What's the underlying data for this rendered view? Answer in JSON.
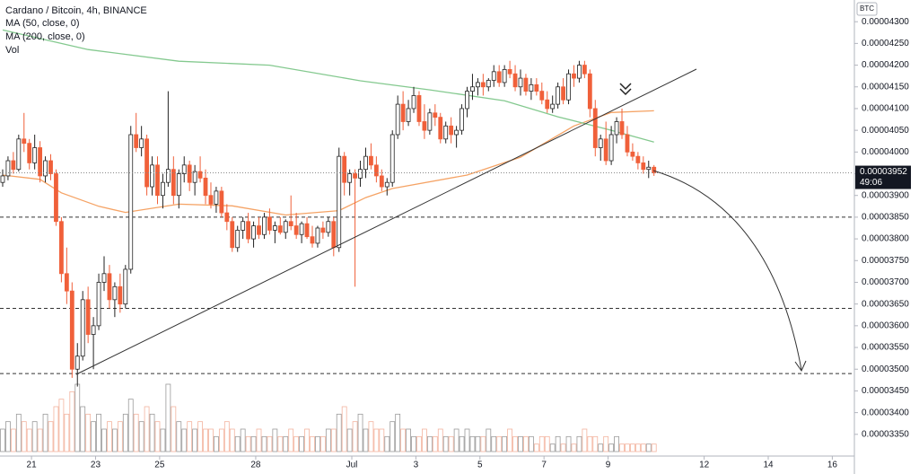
{
  "chart_data": {
    "type": "candlestick",
    "title": "Cardano / Bitcoin, 4h, BINANCE",
    "currency": "BTC",
    "volume_label": "Vol",
    "countdown": "49:06",
    "last_price": 3.952e-05,
    "up_color": "#ffffff",
    "down_color": "#f0603a",
    "grid": false,
    "ylim": [
      3.3e-05,
      4.35e-05
    ],
    "xlim": [
      -0.5,
      159.2
    ],
    "yticks": [
      {
        "value": 3.35e-05,
        "label": "0.00003350"
      },
      {
        "value": 3.4e-05,
        "label": "0.00003400"
      },
      {
        "value": 3.45e-05,
        "label": "0.00003450"
      },
      {
        "value": 3.5e-05,
        "label": "0.00003500"
      },
      {
        "value": 3.55e-05,
        "label": "0.00003550"
      },
      {
        "value": 3.6e-05,
        "label": "0.00003600"
      },
      {
        "value": 3.65e-05,
        "label": "0.00003650"
      },
      {
        "value": 3.7e-05,
        "label": "0.00003700"
      },
      {
        "value": 3.75e-05,
        "label": "0.00003750"
      },
      {
        "value": 3.8e-05,
        "label": "0.00003800"
      },
      {
        "value": 3.85e-05,
        "label": "0.00003850"
      },
      {
        "value": 3.9e-05,
        "label": "0.00003900"
      },
      {
        "value": 3.95e-05,
        "label": "0.00003950"
      },
      {
        "value": 4e-05,
        "label": "0.00004000"
      },
      {
        "value": 4.05e-05,
        "label": "0.00004050"
      },
      {
        "value": 4.1e-05,
        "label": "0.00004100"
      },
      {
        "value": 4.15e-05,
        "label": "0.00004150"
      },
      {
        "value": 4.2e-05,
        "label": "0.00004200"
      },
      {
        "value": 4.25e-05,
        "label": "0.00004250"
      },
      {
        "value": 4.3e-05,
        "label": "0.00004300"
      }
    ],
    "xticks": [
      {
        "value": 5.4,
        "label": "21"
      },
      {
        "value": 17.4,
        "label": "23"
      },
      {
        "value": 29.4,
        "label": "25"
      },
      {
        "value": 47.4,
        "label": "28"
      },
      {
        "value": 65.4,
        "label": "Jul"
      },
      {
        "value": 77.4,
        "label": "3"
      },
      {
        "value": 89.4,
        "label": "5"
      },
      {
        "value": 101.4,
        "label": "7"
      },
      {
        "value": 113.4,
        "label": "9"
      },
      {
        "value": 131.4,
        "label": "12"
      },
      {
        "value": 143.4,
        "label": "14"
      },
      {
        "value": 155.4,
        "label": "16"
      }
    ],
    "levels": [
      3.85e-05,
      3.64e-05,
      3.49e-05
    ],
    "indicators": [
      {
        "name": "MA (50, close, 0)",
        "color": "#f5a365",
        "x": [
          0,
          7,
          11,
          18,
          23,
          33,
          43,
          53,
          63,
          68,
          73,
          87,
          97,
          107,
          114,
          122
        ],
        "values": [
          3.947e-05,
          3.937e-05,
          3.906e-05,
          3.875e-05,
          3.861e-05,
          3.88e-05,
          3.876e-05,
          3.855e-05,
          3.865e-05,
          3.895e-05,
          3.916e-05,
          3.947e-05,
          3.988e-05,
          4.06e-05,
          4.091e-05,
          4.095e-05
        ]
      },
      {
        "name": "MA (200, close, 0)",
        "color": "#84c98f",
        "x": [
          0,
          16,
          33,
          50,
          67,
          80,
          94,
          104,
          114,
          122
        ],
        "values": [
          4.281e-05,
          4.236e-05,
          4.209e-05,
          4.2e-05,
          4.164e-05,
          4.143e-05,
          4.118e-05,
          4.081e-05,
          4.05e-05,
          4.023e-05
        ]
      }
    ],
    "ohlc": [
      [
        3.93e-05,
        3.96e-05,
        3.92e-05,
        3.945e-05
      ],
      [
        3.945e-05,
        3.99e-05,
        3.935e-05,
        3.98e-05
      ],
      [
        3.98e-05,
        4e-05,
        3.95e-05,
        3.96e-05
      ],
      [
        3.96e-05,
        4.04e-05,
        3.955e-05,
        4.03e-05
      ],
      [
        4.03e-05,
        4.09e-05,
        4e-05,
        4.02e-05
      ],
      [
        4.02e-05,
        4.03e-05,
        3.96e-05,
        3.975e-05
      ],
      [
        3.975e-05,
        4.04e-05,
        3.96e-05,
        4.01e-05
      ],
      [
        4.01e-05,
        4.025e-05,
        3.93e-05,
        3.945e-05
      ],
      [
        3.945e-05,
        3.99e-05,
        3.93e-05,
        3.98e-05
      ],
      [
        3.98e-05,
        3.995e-05,
        3.935e-05,
        3.95e-05
      ],
      [
        3.95e-05,
        3.96e-05,
        3.83e-05,
        3.84e-05
      ],
      [
        3.84e-05,
        3.85e-05,
        3.7e-05,
        3.72e-05
      ],
      [
        3.72e-05,
        3.78e-05,
        3.65e-05,
        3.68e-05
      ],
      [
        3.68e-05,
        3.7e-05,
        3.48e-05,
        3.5e-05
      ],
      [
        3.5e-05,
        3.56e-05,
        3.46e-05,
        3.53e-05
      ],
      [
        3.53e-05,
        3.68e-05,
        3.52e-05,
        3.66e-05
      ],
      [
        3.66e-05,
        3.69e-05,
        3.56e-05,
        3.58e-05
      ],
      [
        3.58e-05,
        3.62e-05,
        3.5e-05,
        3.6e-05
      ],
      [
        3.6e-05,
        3.72e-05,
        3.59e-05,
        3.7e-05
      ],
      [
        3.7e-05,
        3.76e-05,
        3.68e-05,
        3.72e-05
      ],
      [
        3.72e-05,
        3.74e-05,
        3.64e-05,
        3.66e-05
      ],
      [
        3.66e-05,
        3.7e-05,
        3.62e-05,
        3.69e-05
      ],
      [
        3.69e-05,
        3.72e-05,
        3.63e-05,
        3.65e-05
      ],
      [
        3.65e-05,
        3.74e-05,
        3.64e-05,
        3.73e-05
      ],
      [
        3.73e-05,
        4.06e-05,
        3.72e-05,
        4.04e-05
      ],
      [
        4.04e-05,
        4.09e-05,
        4e-05,
        4.01e-05
      ],
      [
        4.01e-05,
        4.06e-05,
        3.99e-05,
        4.03e-05
      ],
      [
        4.03e-05,
        4.04e-05,
        3.9e-05,
        3.92e-05
      ],
      [
        3.92e-05,
        3.99e-05,
        3.9e-05,
        3.97e-05
      ],
      [
        3.97e-05,
        3.99e-05,
        3.88e-05,
        3.9e-05
      ],
      [
        3.9e-05,
        3.95e-05,
        3.87e-05,
        3.93e-05
      ],
      [
        3.93e-05,
        4.14e-05,
        3.92e-05,
        3.96e-05
      ],
      [
        3.96e-05,
        3.99e-05,
        3.88e-05,
        3.9e-05
      ],
      [
        3.9e-05,
        3.96e-05,
        3.87e-05,
        3.95e-05
      ],
      [
        3.95e-05,
        3.99e-05,
        3.93e-05,
        3.97e-05
      ],
      [
        3.97e-05,
        3.98e-05,
        3.91e-05,
        3.93e-05
      ],
      [
        3.93e-05,
        3.97e-05,
        3.9e-05,
        3.955e-05
      ],
      [
        3.955e-05,
        3.99e-05,
        3.93e-05,
        3.94e-05
      ],
      [
        3.94e-05,
        3.96e-05,
        3.88e-05,
        3.9e-05
      ],
      [
        3.9e-05,
        3.93e-05,
        3.87e-05,
        3.88e-05
      ],
      [
        3.88e-05,
        3.92e-05,
        3.86e-05,
        3.91e-05
      ],
      [
        3.91e-05,
        3.92e-05,
        3.85e-05,
        3.86e-05
      ],
      [
        3.86e-05,
        3.88e-05,
        3.82e-05,
        3.84e-05
      ],
      [
        3.84e-05,
        3.85e-05,
        3.77e-05,
        3.78e-05
      ],
      [
        3.78e-05,
        3.83e-05,
        3.77e-05,
        3.82e-05
      ],
      [
        3.82e-05,
        3.85e-05,
        3.8e-05,
        3.84e-05
      ],
      [
        3.84e-05,
        3.86e-05,
        3.79e-05,
        3.8e-05
      ],
      [
        3.8e-05,
        3.84e-05,
        3.78e-05,
        3.83e-05
      ],
      [
        3.83e-05,
        3.85e-05,
        3.8e-05,
        3.81e-05
      ],
      [
        3.81e-05,
        3.86e-05,
        3.8e-05,
        3.85e-05
      ],
      [
        3.85e-05,
        3.87e-05,
        3.81e-05,
        3.82e-05
      ],
      [
        3.82e-05,
        3.84e-05,
        3.79e-05,
        3.83e-05
      ],
      [
        3.83e-05,
        3.85e-05,
        3.81e-05,
        3.815e-05
      ],
      [
        3.815e-05,
        3.845e-05,
        3.8e-05,
        3.84e-05
      ],
      [
        3.84e-05,
        3.9e-05,
        3.82e-05,
        3.83e-05
      ],
      [
        3.83e-05,
        3.86e-05,
        3.8e-05,
        3.81e-05
      ],
      [
        3.81e-05,
        3.84e-05,
        3.79e-05,
        3.835e-05
      ],
      [
        3.835e-05,
        3.85e-05,
        3.8e-05,
        3.805e-05
      ],
      [
        3.805e-05,
        3.83e-05,
        3.78e-05,
        3.79e-05
      ],
      [
        3.79e-05,
        3.83e-05,
        3.78e-05,
        3.825e-05
      ],
      [
        3.825e-05,
        3.84e-05,
        3.8e-05,
        3.815e-05
      ],
      [
        3.815e-05,
        3.85e-05,
        3.805e-05,
        3.84e-05
      ],
      [
        3.84e-05,
        3.85e-05,
        3.76e-05,
        3.78e-05
      ],
      [
        3.78e-05,
        4.01e-05,
        3.77e-05,
        3.99e-05
      ],
      [
        3.99e-05,
        4e-05,
        3.9e-05,
        3.93e-05
      ],
      [
        3.93e-05,
        3.96e-05,
        3.9e-05,
        3.95e-05
      ],
      [
        3.95e-05,
        3.96e-05,
        3.69e-05,
        3.94e-05
      ],
      [
        3.94e-05,
        3.98e-05,
        3.92e-05,
        3.96e-05
      ],
      [
        3.96e-05,
        4.01e-05,
        3.94e-05,
        3.99e-05
      ],
      [
        3.99e-05,
        4.02e-05,
        3.96e-05,
        3.97e-05
      ],
      [
        3.97e-05,
        3.99e-05,
        3.93e-05,
        3.945e-05
      ],
      [
        3.945e-05,
        3.96e-05,
        3.91e-05,
        3.92e-05
      ],
      [
        3.92e-05,
        3.94e-05,
        3.9e-05,
        3.93e-05
      ],
      [
        3.93e-05,
        4.05e-05,
        3.92e-05,
        4.04e-05
      ],
      [
        4.04e-05,
        4.13e-05,
        4.03e-05,
        4.11e-05
      ],
      [
        4.11e-05,
        4.14e-05,
        4.05e-05,
        4.07e-05
      ],
      [
        4.07e-05,
        4.12e-05,
        4.06e-05,
        4.1e-05
      ],
      [
        4.1e-05,
        4.15e-05,
        4.09e-05,
        4.13e-05
      ],
      [
        4.13e-05,
        4.14e-05,
        4.06e-05,
        4.07e-05
      ],
      [
        4.07e-05,
        4.11e-05,
        4.03e-05,
        4.05e-05
      ],
      [
        4.05e-05,
        4.1e-05,
        4.04e-05,
        4.09e-05
      ],
      [
        4.09e-05,
        4.11e-05,
        4.06e-05,
        4.08e-05
      ],
      [
        4.08e-05,
        4.09e-05,
        4.02e-05,
        4.03e-05
      ],
      [
        4.03e-05,
        4.07e-05,
        4.02e-05,
        4.06e-05
      ],
      [
        4.06e-05,
        4.08e-05,
        4.02e-05,
        4.04e-05
      ],
      [
        4.04e-05,
        4.06e-05,
        4.01e-05,
        4.05e-05
      ],
      [
        4.05e-05,
        4.11e-05,
        4.04e-05,
        4.1e-05
      ],
      [
        4.1e-05,
        4.15e-05,
        4.08e-05,
        4.14e-05
      ],
      [
        4.14e-05,
        4.18e-05,
        4.12e-05,
        4.15e-05
      ],
      [
        4.15e-05,
        4.17e-05,
        4.13e-05,
        4.16e-05
      ],
      [
        4.16e-05,
        4.18e-05,
        4.13e-05,
        4.15e-05
      ],
      [
        4.15e-05,
        4.17e-05,
        4.14e-05,
        4.165e-05
      ],
      [
        4.165e-05,
        4.2e-05,
        4.15e-05,
        4.185e-05
      ],
      [
        4.185e-05,
        4.2e-05,
        4.15e-05,
        4.16e-05
      ],
      [
        4.16e-05,
        4.2e-05,
        4.15e-05,
        4.19e-05
      ],
      [
        4.19e-05,
        4.21e-05,
        4.17e-05,
        4.18e-05
      ],
      [
        4.18e-05,
        4.2e-05,
        4.14e-05,
        4.15e-05
      ],
      [
        4.15e-05,
        4.19e-05,
        4.13e-05,
        4.17e-05
      ],
      [
        4.17e-05,
        4.18e-05,
        4.13e-05,
        4.14e-05
      ],
      [
        4.14e-05,
        4.17e-05,
        4.12e-05,
        4.155e-05
      ],
      [
        4.155e-05,
        4.17e-05,
        4.13e-05,
        4.14e-05
      ],
      [
        4.14e-05,
        4.16e-05,
        4.11e-05,
        4.12e-05
      ],
      [
        4.12e-05,
        4.14e-05,
        4.09e-05,
        4.1e-05
      ],
      [
        4.1e-05,
        4.13e-05,
        4.09e-05,
        4.11e-05
      ],
      [
        4.11e-05,
        4.16e-05,
        4.1e-05,
        4.15e-05
      ],
      [
        4.15e-05,
        4.17e-05,
        4.11e-05,
        4.12e-05
      ],
      [
        4.12e-05,
        4.19e-05,
        4.11e-05,
        4.18e-05
      ],
      [
        4.18e-05,
        4.2e-05,
        4.15e-05,
        4.17e-05
      ],
      [
        4.17e-05,
        4.21e-05,
        4.16e-05,
        4.2e-05
      ],
      [
        4.2e-05,
        4.21e-05,
        4.17e-05,
        4.18e-05
      ],
      [
        4.18e-05,
        4.19e-05,
        4.08e-05,
        4.1e-05
      ],
      [
        4.1e-05,
        4.12e-05,
        3.99e-05,
        4.01e-05
      ],
      [
        4.01e-05,
        4.04e-05,
        3.98e-05,
        4.03e-05
      ],
      [
        4.03e-05,
        4.07e-05,
        3.97e-05,
        3.98e-05
      ],
      [
        3.98e-05,
        4.06e-05,
        3.97e-05,
        4.04e-05
      ],
      [
        4.04e-05,
        4.08e-05,
        4.02e-05,
        4.07e-05
      ],
      [
        4.07e-05,
        4.1e-05,
        4.03e-05,
        4.04e-05
      ],
      [
        4.04e-05,
        4.06e-05,
        3.99e-05,
        4e-05
      ],
      [
        4e-05,
        4.02e-05,
        3.98e-05,
        3.99e-05
      ],
      [
        3.99e-05,
        4e-05,
        3.96e-05,
        3.975e-05
      ],
      [
        3.975e-05,
        3.99e-05,
        3.95e-05,
        3.96e-05
      ],
      [
        3.96e-05,
        3.98e-05,
        3.94e-05,
        3.965e-05
      ],
      [
        3.965e-05,
        3.97e-05,
        3.945e-05,
        3.952e-05
      ]
    ],
    "volume": [
      3,
      4,
      3,
      5,
      4,
      3,
      4,
      3,
      5,
      4,
      6,
      7,
      5,
      8,
      9,
      6,
      5,
      4,
      5,
      3,
      4,
      3,
      4,
      5,
      7,
      5,
      4,
      6,
      5,
      4,
      3,
      9,
      6,
      4,
      3,
      4,
      3,
      4,
      3,
      3,
      2,
      3,
      4,
      3,
      2,
      3,
      2,
      2,
      3,
      2,
      2,
      3,
      2,
      2,
      3,
      2,
      2,
      3,
      2,
      2,
      2,
      3,
      3,
      5,
      6,
      3,
      4,
      5,
      3,
      4,
      3,
      3,
      2,
      4,
      5,
      3,
      3,
      2,
      2,
      3,
      2,
      2,
      3,
      2,
      2,
      3,
      2,
      3,
      2,
      2,
      2,
      3,
      2,
      2,
      2,
      3,
      2,
      2,
      2,
      2,
      1,
      2,
      2,
      1,
      2,
      1,
      2,
      1,
      2,
      3,
      2,
      2,
      1,
      2,
      1,
      2,
      1,
      1,
      1,
      1,
      1,
      1,
      1
    ]
  }
}
